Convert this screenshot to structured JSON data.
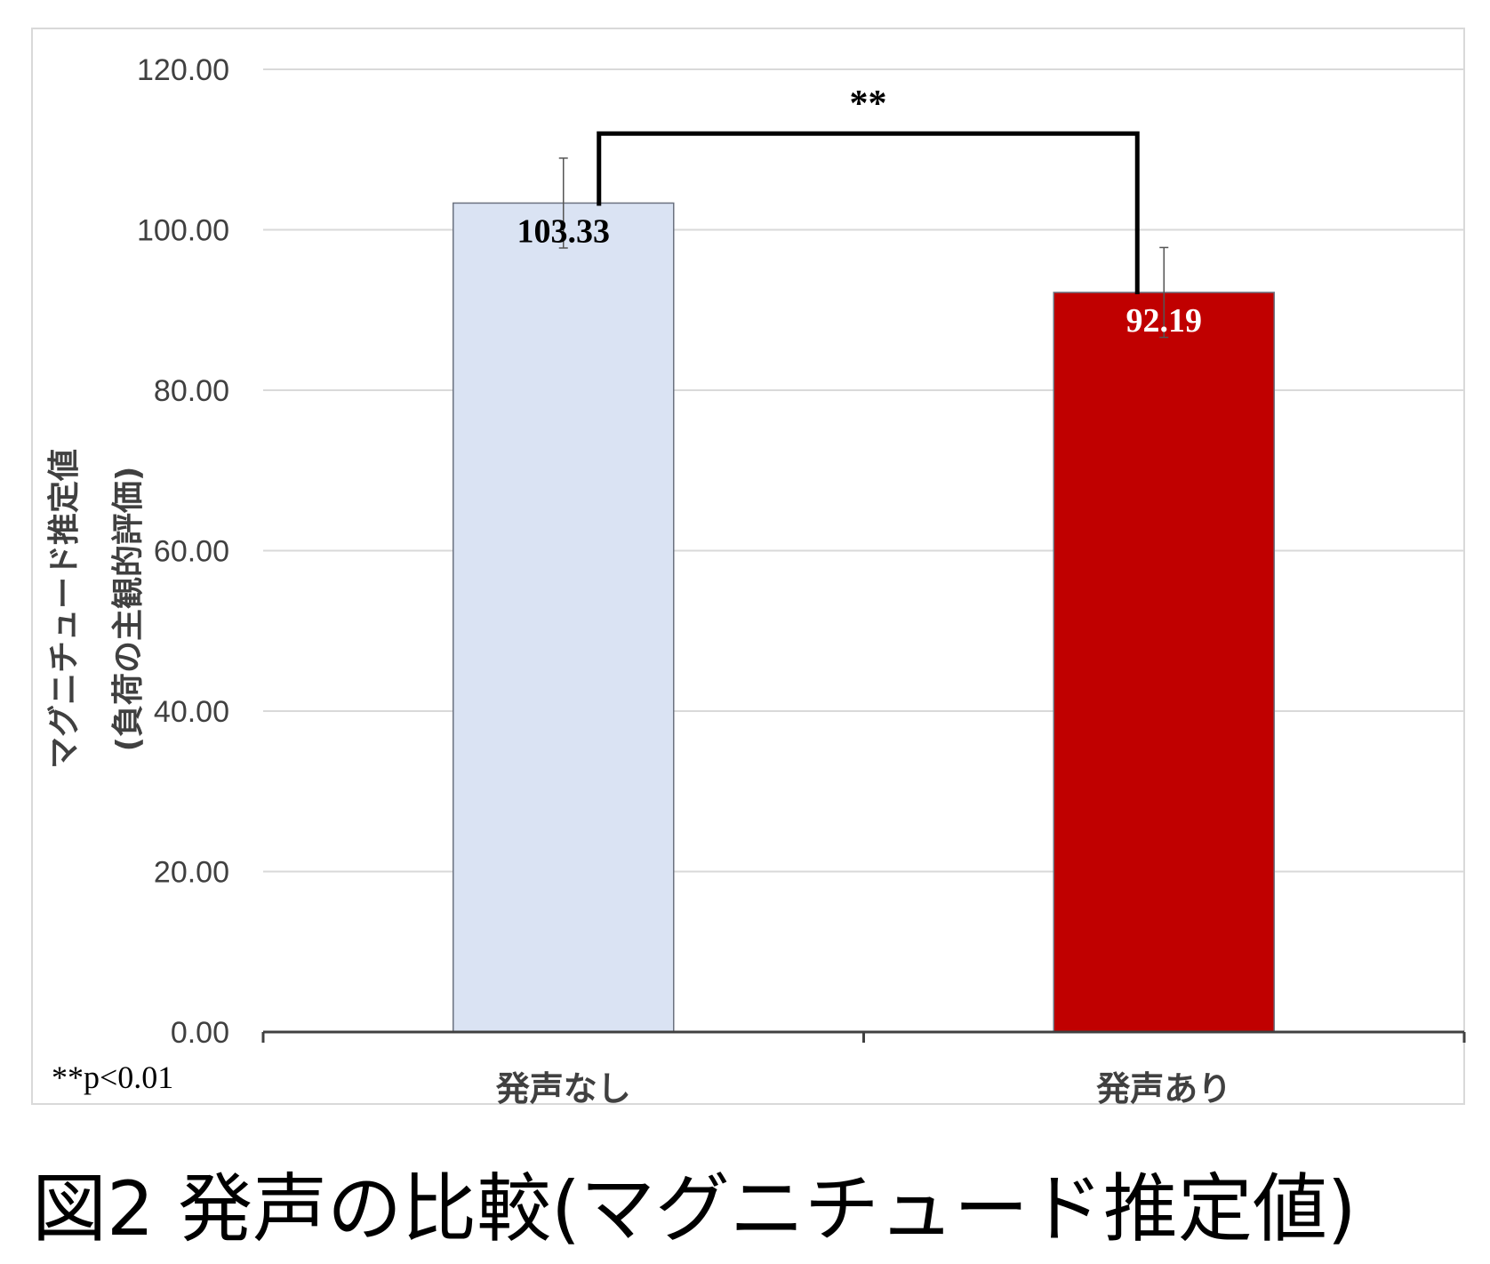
{
  "chart_data": {
    "type": "bar",
    "categories": [
      "発声なし",
      "発声あり"
    ],
    "values": [
      103.33,
      92.19
    ],
    "data_labels": [
      "103.33",
      "92.19"
    ],
    "error_bars": [
      5.6,
      5.6
    ],
    "colors": [
      "#dae3f3",
      "#c00000"
    ],
    "label_colors": [
      "#000000",
      "#ffffff"
    ],
    "ylim": [
      0,
      120
    ],
    "y_ticks": [
      "0.00",
      "20.00",
      "40.00",
      "60.00",
      "80.00",
      "100.00",
      "120.00"
    ],
    "ylabel_line1": "マグニチュード推定値",
    "ylabel_line2": "(負荷の主観的評価)",
    "significance": {
      "marker": "**",
      "bracket_y": 112
    },
    "note": "**p<0.01",
    "grid": true
  },
  "caption": "図2 発声の比較(マグニチュード推定値)"
}
